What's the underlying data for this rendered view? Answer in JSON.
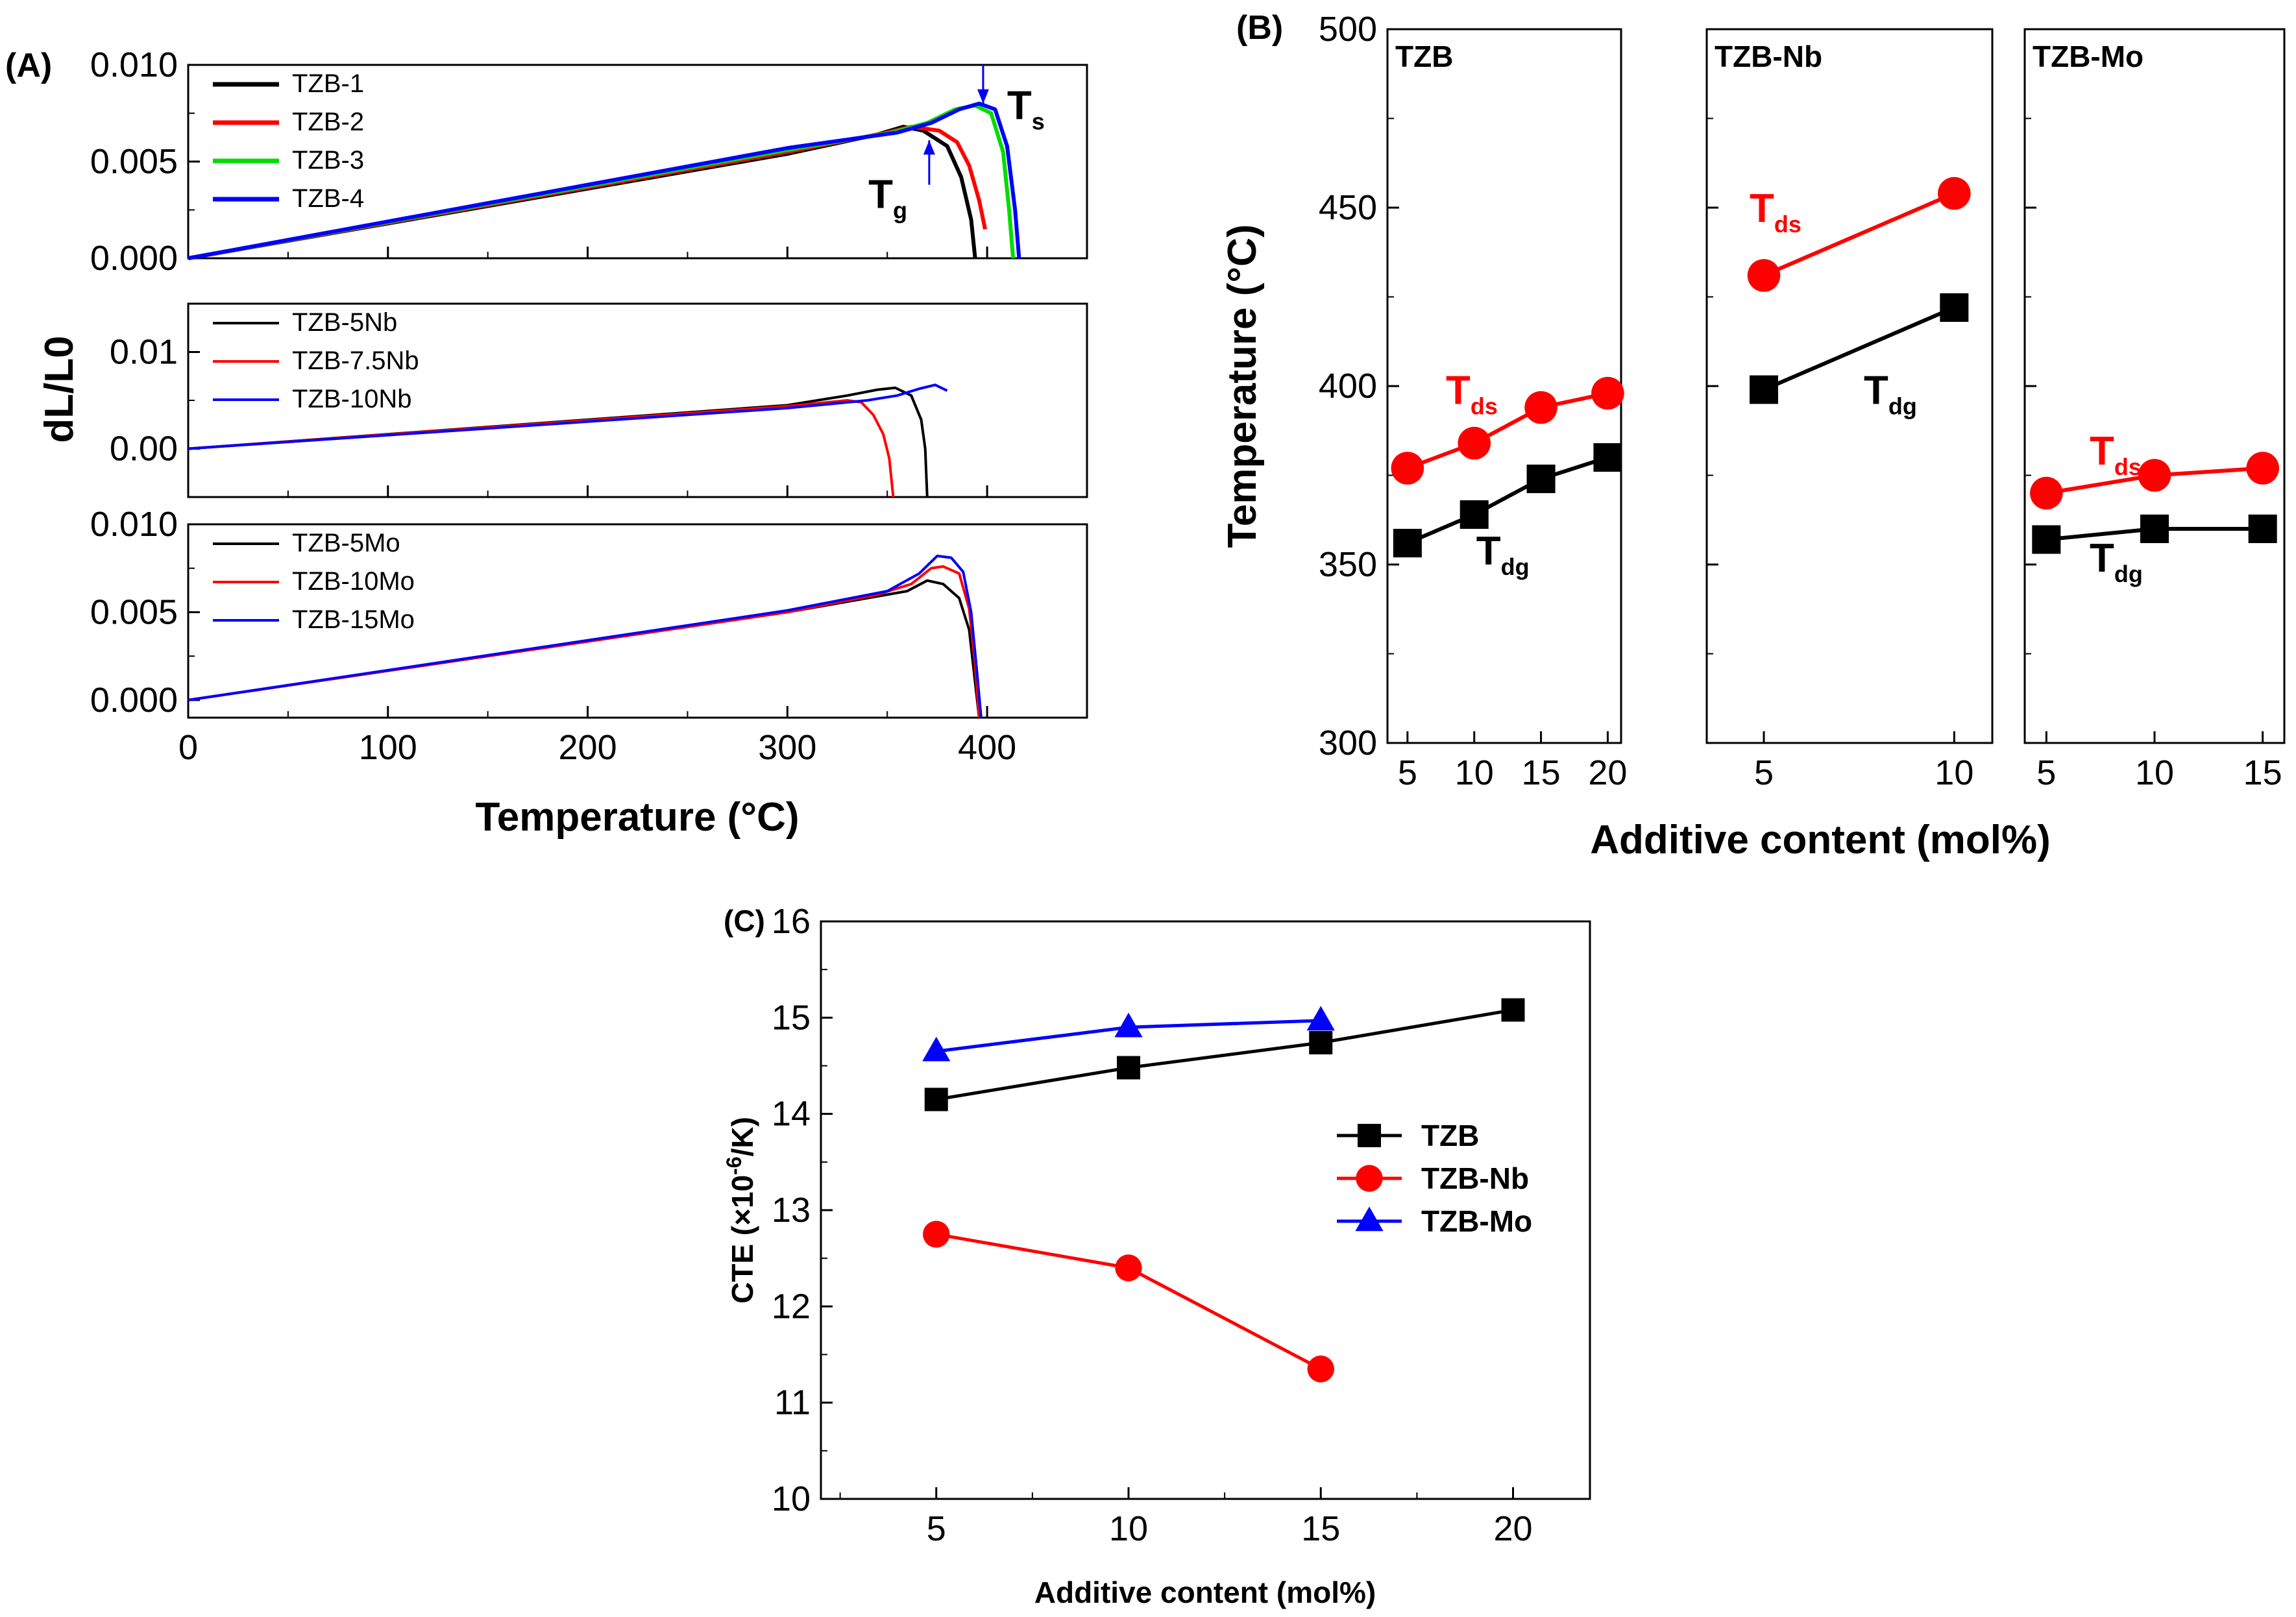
{
  "chart_data": [
    {
      "panel": "(A)",
      "type": "line",
      "xlabel": "Temperature (°C)",
      "ylabel": "dL/L0",
      "xlim": [
        0,
        450
      ],
      "x_ticks": [
        "0",
        "100",
        "200",
        "300",
        "400"
      ],
      "subplots": [
        {
          "ylim": [
            0,
            0.01
          ],
          "y_ticks": [
            "0.000",
            "0.005",
            "0.010"
          ],
          "series": [
            {
              "name": "TZB-1",
              "color": "#000000",
              "points": [
                [
                  0,
                  0
                ],
                [
                  300,
                  0.0054
                ],
                [
                  345,
                  0.0064
                ],
                [
                  358,
                  0.0068
                ],
                [
                  368,
                  0.0066
                ],
                [
                  380,
                  0.0058
                ],
                [
                  387,
                  0.0042
                ],
                [
                  392,
                  0.002
                ],
                [
                  394,
                  0.0
                ]
              ]
            },
            {
              "name": "TZB-2",
              "color": "#ff0000",
              "points": [
                [
                  0,
                  0
                ],
                [
                  300,
                  0.0055
                ],
                [
                  350,
                  0.0065
                ],
                [
                  362,
                  0.0068
                ],
                [
                  376,
                  0.0066
                ],
                [
                  385,
                  0.006
                ],
                [
                  391,
                  0.0048
                ],
                [
                  396,
                  0.003
                ],
                [
                  399,
                  0.0015
                ]
              ]
            },
            {
              "name": "TZB-3",
              "color": "#00dd00",
              "points": [
                [
                  0,
                  0
                ],
                [
                  300,
                  0.0056
                ],
                [
                  352,
                  0.0065
                ],
                [
                  370,
                  0.007
                ],
                [
                  384,
                  0.0077
                ],
                [
                  394,
                  0.0079
                ],
                [
                  402,
                  0.0075
                ],
                [
                  408,
                  0.0055
                ],
                [
                  411,
                  0.0025
                ],
                [
                  413,
                  0.0
                ]
              ]
            },
            {
              "name": "TZB-4",
              "color": "#0000ff",
              "points": [
                [
                  0,
                  0
                ],
                [
                  300,
                  0.0057
                ],
                [
                  355,
                  0.0065
                ],
                [
                  372,
                  0.007
                ],
                [
                  386,
                  0.0077
                ],
                [
                  396,
                  0.008
                ],
                [
                  404,
                  0.0077
                ],
                [
                  410,
                  0.0058
                ],
                [
                  414,
                  0.0025
                ],
                [
                  416,
                  0.0
                ]
              ]
            }
          ],
          "annotations": [
            {
              "text": "T",
              "sub": "g",
              "x": 360,
              "y": 0.0026,
              "arrow_to": [
                371,
                0.0061
              ]
            },
            {
              "text": "T",
              "sub": "s",
              "x": 410,
              "y": 0.0072,
              "arrow_to": [
                398,
                0.008
              ]
            }
          ]
        },
        {
          "ylim": [
            -0.005,
            0.015
          ],
          "y_ticks": [
            "0.00",
            "0.01"
          ],
          "series": [
            {
              "name": "TZB-5Nb",
              "color": "#000000",
              "points": [
                [
                  0,
                  0
                ],
                [
                  300,
                  0.0045
                ],
                [
                  330,
                  0.0055
                ],
                [
                  345,
                  0.0061
                ],
                [
                  354,
                  0.0063
                ],
                [
                  362,
                  0.0055
                ],
                [
                  367,
                  0.003
                ],
                [
                  369,
                  0.0
                ],
                [
                  370,
                  -0.005
                ]
              ]
            },
            {
              "name": "TZB-7.5Nb",
              "color": "#ff0000",
              "points": [
                [
                  0,
                  0
                ],
                [
                  300,
                  0.0044
                ],
                [
                  330,
                  0.005
                ],
                [
                  337,
                  0.0048
                ],
                [
                  343,
                  0.0035
                ],
                [
                  348,
                  0.0015
                ],
                [
                  351,
                  -0.001
                ],
                [
                  353,
                  -0.005
                ]
              ]
            },
            {
              "name": "TZB-10Nb",
              "color": "#0000ff",
              "points": [
                [
                  0,
                  0
                ],
                [
                  300,
                  0.0042
                ],
                [
                  340,
                  0.005
                ],
                [
                  355,
                  0.0055
                ],
                [
                  366,
                  0.0062
                ],
                [
                  374,
                  0.0066
                ],
                [
                  380,
                  0.006
                ]
              ]
            }
          ]
        },
        {
          "ylim": [
            -0.001,
            0.01
          ],
          "y_ticks": [
            "0.000",
            "0.005",
            "0.010"
          ],
          "series": [
            {
              "name": "TZB-5Mo",
              "color": "#000000",
              "points": [
                [
                  0,
                  0
                ],
                [
                  300,
                  0.005
                ],
                [
                  340,
                  0.0058
                ],
                [
                  360,
                  0.0062
                ],
                [
                  370,
                  0.0068
                ],
                [
                  378,
                  0.0066
                ],
                [
                  386,
                  0.0058
                ],
                [
                  391,
                  0.004
                ],
                [
                  394,
                  0.001
                ],
                [
                  396,
                  -0.001
                ]
              ]
            },
            {
              "name": "TZB-10Mo",
              "color": "#ff0000",
              "points": [
                [
                  0,
                  0
                ],
                [
                  300,
                  0.005
                ],
                [
                  345,
                  0.006
                ],
                [
                  362,
                  0.0066
                ],
                [
                  372,
                  0.0075
                ],
                [
                  378,
                  0.0076
                ],
                [
                  386,
                  0.0072
                ],
                [
                  391,
                  0.0052
                ],
                [
                  394,
                  0.002
                ],
                [
                  396,
                  -0.001
                ]
              ]
            },
            {
              "name": "TZB-15Mo",
              "color": "#0000ff",
              "points": [
                [
                  0,
                  0
                ],
                [
                  300,
                  0.0051
                ],
                [
                  350,
                  0.0062
                ],
                [
                  366,
                  0.0072
                ],
                [
                  375,
                  0.0082
                ],
                [
                  382,
                  0.0081
                ],
                [
                  388,
                  0.0073
                ],
                [
                  392,
                  0.005
                ],
                [
                  395,
                  0.0015
                ],
                [
                  397,
                  -0.001
                ]
              ]
            }
          ]
        }
      ]
    },
    {
      "panel": "(B)",
      "type": "line",
      "ylabel": "Temperature (°C)",
      "xlabel": "Additive content (mol%)",
      "ylim": [
        300,
        500
      ],
      "y_ticks": [
        "300",
        "350",
        "400",
        "450",
        "500"
      ],
      "subpanels": [
        {
          "title": "TZB",
          "xlim": [
            3.5,
            21
          ],
          "x_ticks": [
            "5",
            "10",
            "15",
            "20"
          ],
          "x": [
            5,
            10,
            15,
            20
          ],
          "T_ds": [
            377,
            384,
            394,
            398
          ],
          "T_dg": [
            356,
            364,
            374,
            380
          ]
        },
        {
          "title": "TZB-Nb",
          "xlim": [
            3.5,
            11
          ],
          "x_ticks": [
            "5",
            "10"
          ],
          "x": [
            5,
            10
          ],
          "T_ds": [
            431,
            454
          ],
          "T_dg": [
            399,
            422
          ]
        },
        {
          "title": "TZB-Mo",
          "xlim": [
            4,
            16
          ],
          "x_ticks": [
            "5",
            "10",
            "15"
          ],
          "x": [
            5,
            10,
            15
          ],
          "T_ds": [
            370,
            375,
            377
          ],
          "T_dg": [
            357,
            360,
            360
          ]
        }
      ],
      "series_labels": {
        "ds": "T",
        "ds_sub": "ds",
        "dg": "T",
        "dg_sub": "dg"
      },
      "series_colors": {
        "ds": "#ff0000",
        "dg": "#000000"
      }
    },
    {
      "panel": "(C)",
      "type": "line",
      "xlabel": "Additive content (mol%)",
      "ylabel": "CTE (×10",
      "ylabel_sup": "-6",
      "ylabel_tail": "/K)",
      "xlim": [
        2,
        22
      ],
      "ylim": [
        10,
        16
      ],
      "x_ticks": [
        "5",
        "10",
        "15",
        "20"
      ],
      "y_ticks": [
        "10",
        "11",
        "12",
        "13",
        "14",
        "15",
        "16"
      ],
      "series": [
        {
          "name": "TZB",
          "color": "#000000",
          "marker": "square",
          "x": [
            5,
            10,
            15,
            20
          ],
          "y": [
            14.15,
            14.48,
            14.74,
            15.08
          ]
        },
        {
          "name": "TZB-Nb",
          "color": "#ff0000",
          "marker": "circle",
          "x": [
            5,
            10,
            15
          ],
          "y": [
            12.75,
            12.4,
            11.35
          ]
        },
        {
          "name": "TZB-Mo",
          "color": "#0000ff",
          "marker": "triangle",
          "x": [
            5,
            10,
            15
          ],
          "y": [
            14.65,
            14.9,
            14.97
          ]
        }
      ]
    }
  ]
}
